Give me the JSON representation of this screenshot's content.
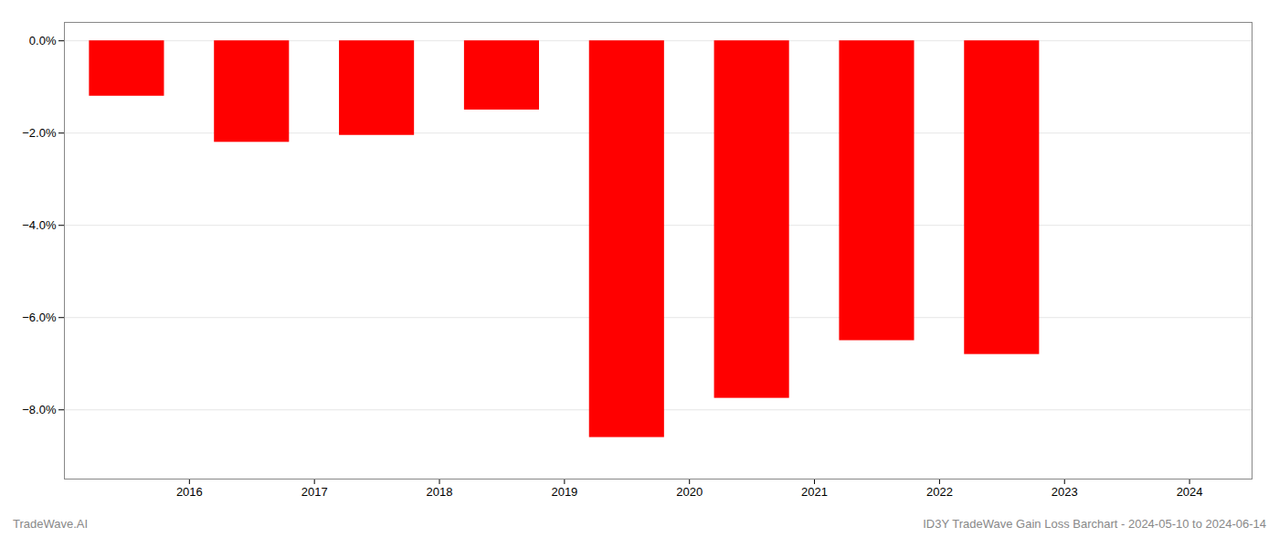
{
  "chart_data": {
    "type": "bar",
    "x": [
      2015.5,
      2016.5,
      2017.5,
      2018.5,
      2019.5,
      2020.5,
      2021.5,
      2022.5
    ],
    "values": [
      -1.2,
      -2.2,
      -2.05,
      -1.5,
      -8.6,
      -7.75,
      -6.5,
      -6.8
    ],
    "color": "#ff0000",
    "xlim": [
      2015.0,
      2024.5
    ],
    "xticks": [
      2016,
      2017,
      2018,
      2019,
      2020,
      2021,
      2022,
      2023,
      2024
    ],
    "ylim": [
      -9.5,
      0.4
    ],
    "yticks": [
      {
        "value": 0.0,
        "label": "0.0%"
      },
      {
        "value": -2.0,
        "label": "−2.0%"
      },
      {
        "value": -4.0,
        "label": "−4.0%"
      },
      {
        "value": -6.0,
        "label": "−6.0%"
      },
      {
        "value": -8.0,
        "label": "−8.0%"
      }
    ],
    "grid": true,
    "annotations": [
      "TradeWave.AI",
      "ID3Y TradeWave Gain Loss Barchart - 2024-05-10 to 2024-06-14"
    ]
  }
}
